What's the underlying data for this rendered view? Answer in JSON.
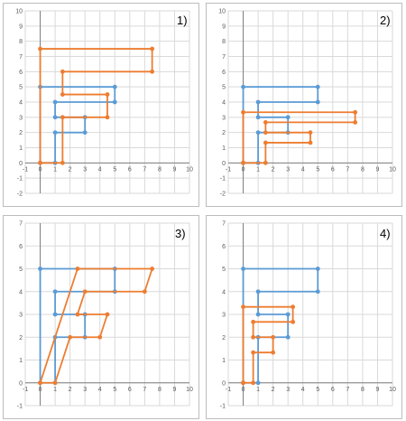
{
  "colors": {
    "series_a": "#5b9bd5",
    "series_b": "#ed7d31",
    "grid": "#d9d9d9",
    "axis": "#7f7f7f"
  },
  "chart_data": [
    {
      "type": "line",
      "label": "1)",
      "xlim": [
        -1,
        10
      ],
      "ylim": [
        -2,
        10
      ],
      "xticks": [
        "-1",
        "0",
        "1",
        "2",
        "3",
        "4",
        "5",
        "6",
        "7",
        "8",
        "9",
        "10"
      ],
      "yticks": [
        "-2",
        "-1",
        "0",
        "1",
        "2",
        "3",
        "4",
        "5",
        "6",
        "7",
        "8",
        "9",
        "10"
      ],
      "grid": true,
      "series": [
        {
          "color": "#5b9bd5",
          "points": [
            [
              0,
              0
            ],
            [
              0,
              5
            ],
            [
              5,
              5
            ],
            [
              5,
              4
            ],
            [
              1,
              4
            ],
            [
              1,
              3
            ],
            [
              3,
              3
            ],
            [
              3,
              2
            ],
            [
              1,
              2
            ],
            [
              1,
              0
            ],
            [
              0,
              0
            ]
          ]
        },
        {
          "color": "#ed7d31",
          "points": [
            [
              0,
              0
            ],
            [
              0,
              7.5
            ],
            [
              7.5,
              7.5
            ],
            [
              7.5,
              6
            ],
            [
              1.5,
              6
            ],
            [
              1.5,
              4.5
            ],
            [
              4.5,
              4.5
            ],
            [
              4.5,
              3
            ],
            [
              1.5,
              3
            ],
            [
              1.5,
              0
            ],
            [
              0,
              0
            ]
          ]
        }
      ]
    },
    {
      "type": "line",
      "label": "2)",
      "xlim": [
        -1,
        10
      ],
      "ylim": [
        -2,
        10
      ],
      "xticks": [
        "-1",
        "0",
        "1",
        "2",
        "3",
        "4",
        "5",
        "6",
        "7",
        "8",
        "9",
        "10"
      ],
      "yticks": [
        "-2",
        "-1",
        "0",
        "1",
        "2",
        "3",
        "4",
        "5",
        "6",
        "7",
        "8",
        "9",
        "10"
      ],
      "grid": true,
      "series": [
        {
          "color": "#5b9bd5",
          "points": [
            [
              0,
              0
            ],
            [
              0,
              5
            ],
            [
              5,
              5
            ],
            [
              5,
              4
            ],
            [
              1,
              4
            ],
            [
              1,
              3
            ],
            [
              3,
              3
            ],
            [
              3,
              2
            ],
            [
              1,
              2
            ],
            [
              1,
              0
            ],
            [
              0,
              0
            ]
          ]
        },
        {
          "color": "#ed7d31",
          "points": [
            [
              0,
              0
            ],
            [
              0,
              3.33
            ],
            [
              7.5,
              3.33
            ],
            [
              7.5,
              2.67
            ],
            [
              1.5,
              2.67
            ],
            [
              1.5,
              2
            ],
            [
              4.5,
              2
            ],
            [
              4.5,
              1.33
            ],
            [
              1.5,
              1.33
            ],
            [
              1.5,
              0
            ],
            [
              0,
              0
            ]
          ]
        }
      ]
    },
    {
      "type": "line",
      "label": "3)",
      "xlim": [
        -1,
        10
      ],
      "ylim": [
        -1,
        7
      ],
      "xticks": [
        "-1",
        "0",
        "1",
        "2",
        "3",
        "4",
        "5",
        "6",
        "7",
        "8",
        "9",
        "10"
      ],
      "yticks": [
        "-1",
        "0",
        "1",
        "2",
        "3",
        "4",
        "5",
        "6",
        "7"
      ],
      "grid": true,
      "series": [
        {
          "color": "#5b9bd5",
          "points": [
            [
              0,
              0
            ],
            [
              0,
              5
            ],
            [
              5,
              5
            ],
            [
              5,
              4
            ],
            [
              1,
              4
            ],
            [
              1,
              3
            ],
            [
              3,
              3
            ],
            [
              3,
              2
            ],
            [
              1,
              2
            ],
            [
              1,
              0
            ],
            [
              0,
              0
            ]
          ]
        },
        {
          "color": "#ed7d31",
          "points": [
            [
              0,
              0
            ],
            [
              2.5,
              5
            ],
            [
              7.5,
              5
            ],
            [
              7,
              4
            ],
            [
              3,
              4
            ],
            [
              2.5,
              3
            ],
            [
              4.5,
              3
            ],
            [
              4,
              2
            ],
            [
              2,
              2
            ],
            [
              1,
              0
            ],
            [
              0,
              0
            ]
          ]
        }
      ]
    },
    {
      "type": "line",
      "label": "4)",
      "xlim": [
        -1,
        10
      ],
      "ylim": [
        -1,
        7
      ],
      "xticks": [
        "-1",
        "0",
        "1",
        "2",
        "3",
        "4",
        "5",
        "6",
        "7",
        "8",
        "9",
        "10"
      ],
      "yticks": [
        "-1",
        "0",
        "1",
        "2",
        "3",
        "4",
        "5",
        "6",
        "7"
      ],
      "grid": true,
      "series": [
        {
          "color": "#5b9bd5",
          "points": [
            [
              0,
              0
            ],
            [
              0,
              5
            ],
            [
              5,
              5
            ],
            [
              5,
              4
            ],
            [
              1,
              4
            ],
            [
              1,
              3
            ],
            [
              3,
              3
            ],
            [
              3,
              2
            ],
            [
              1,
              2
            ],
            [
              1,
              0
            ],
            [
              0,
              0
            ]
          ]
        },
        {
          "color": "#ed7d31",
          "points": [
            [
              0,
              0
            ],
            [
              0,
              3.33
            ],
            [
              3.33,
              3.33
            ],
            [
              3.33,
              2.67
            ],
            [
              0.67,
              2.67
            ],
            [
              0.67,
              2
            ],
            [
              2,
              2
            ],
            [
              2,
              1.33
            ],
            [
              0.67,
              1.33
            ],
            [
              0.67,
              0
            ],
            [
              0,
              0
            ]
          ]
        }
      ]
    }
  ]
}
